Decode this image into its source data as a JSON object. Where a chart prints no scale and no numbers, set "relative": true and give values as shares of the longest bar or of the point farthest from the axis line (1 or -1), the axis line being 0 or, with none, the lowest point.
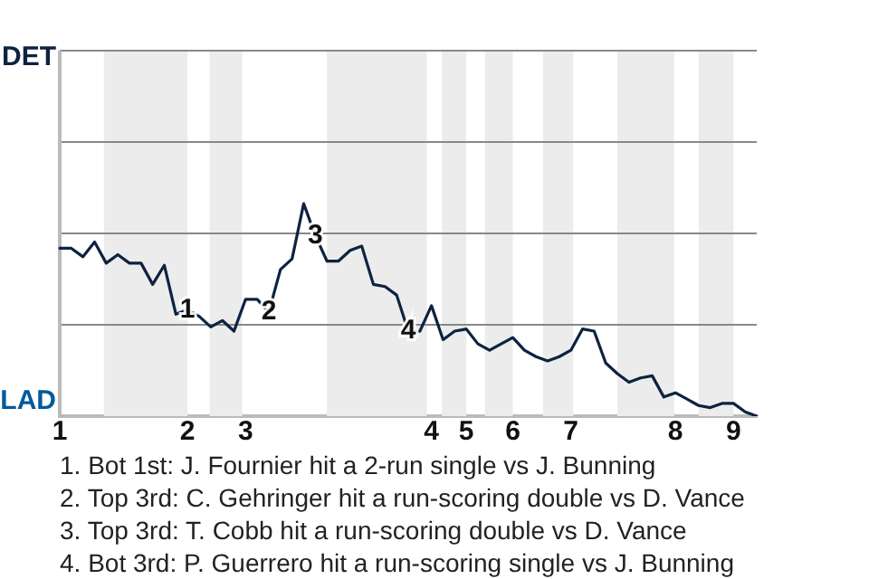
{
  "chart_data": {
    "type": "line",
    "relative": true,
    "categories": [
      "1",
      null,
      null,
      null,
      null,
      null,
      null,
      null,
      null,
      null,
      null,
      "2",
      null,
      null,
      null,
      null,
      "3",
      null,
      null,
      null,
      null,
      null,
      null,
      null,
      null,
      null,
      null,
      null,
      null,
      null,
      null,
      null,
      "4",
      null,
      null,
      "5",
      null,
      null,
      null,
      "6",
      null,
      null,
      null,
      null,
      "7",
      null,
      null,
      null,
      null,
      null,
      null,
      null,
      null,
      "8",
      null,
      null,
      null,
      null,
      "9",
      null,
      null
    ],
    "series": [
      {
        "color": "#0c2340",
        "values": [
          0.79,
          0.79,
          0.75,
          0.82,
          0.72,
          0.76,
          0.72,
          0.72,
          0.62,
          0.71,
          0.48,
          0.5,
          0.47,
          0.42,
          0.45,
          0.4,
          0.55,
          0.55,
          0.49,
          0.69,
          0.74,
          1,
          0.85,
          0.73,
          0.73,
          0.78,
          0.8,
          0.62,
          0.61,
          0.57,
          0.4,
          0.4,
          0.52,
          0.36,
          0.4,
          0.41,
          0.34,
          0.31,
          0.34,
          0.37,
          0.31,
          0.28,
          0.26,
          0.28,
          0.31,
          0.41,
          0.4,
          0.25,
          0.2,
          0.16,
          0.18,
          0.19,
          0.09,
          0.11,
          0.08,
          0.05,
          0.04,
          0.06,
          0.06,
          0.02,
          0
        ]
      }
    ],
    "ref_lines": [
      {
        "axis": "y",
        "value": 0.43,
        "label": null,
        "color": "#888888"
      },
      {
        "axis": "y",
        "value": 0.86,
        "label": null,
        "color": "#888888"
      },
      {
        "axis": "y",
        "value": 1.29,
        "label": null,
        "color": "#888888"
      },
      {
        "axis": "y",
        "value": 1.72,
        "label": "DET",
        "color": "#888888"
      }
    ],
    "annotations": [
      "LAD",
      {
        "text": "1",
        "y": 0.5
      },
      {
        "text": "2",
        "y": 0.49
      },
      {
        "text": "3",
        "y": 0.85
      },
      {
        "text": "4",
        "y": 0.4
      },
      "1. Bot 1st: J. Fournier hit a 2-run single vs J. Bunning",
      "2. Top 3rd: C. Gehringer hit a run-scoring double vs D. Vance",
      "3. Top 3rd: T. Cobb hit a run-scoring double vs D. Vance",
      "4. Bot 3rd: P. Guerrero hit a run-scoring single vs J. Bunning"
    ]
  }
}
